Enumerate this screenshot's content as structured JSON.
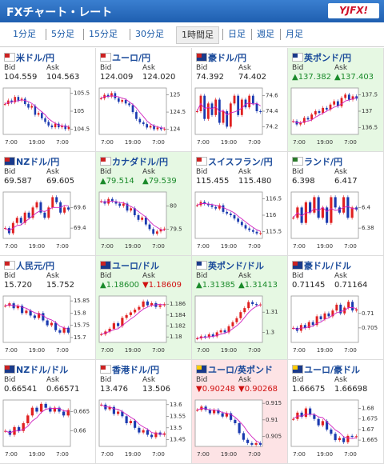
{
  "header": {
    "title": "FXチャート・レート",
    "logo": "YJFX!"
  },
  "tabs": [
    "1分足",
    "5分足",
    "15分足",
    "30分足",
    "1時間足",
    "日足",
    "週足",
    "月足"
  ],
  "selected_tab": 4,
  "labels": {
    "bid": "Bid",
    "ask": "Ask"
  },
  "xticks": [
    "7:00",
    "19:00",
    "7:00"
  ],
  "cards": [
    {
      "pair": "米ドル/円",
      "bid": "104.559",
      "ask": "104.563",
      "state": null,
      "chart": {
        "ylim": [
          104.35,
          105.65
        ],
        "yticks": [
          105.5,
          105,
          104.5
        ],
        "values": [
          105.2,
          105.3,
          105.25,
          105.4,
          105.3,
          105.35,
          105.2,
          105.1,
          105.15,
          104.9,
          104.95,
          104.8,
          104.7,
          104.6,
          104.55,
          104.65,
          104.55,
          104.6,
          104.5,
          104.56
        ]
      }
    },
    {
      "pair": "ユーロ/円",
      "bid": "124.009",
      "ask": "124.020",
      "state": null,
      "chart": {
        "ylim": [
          123.85,
          125.2
        ],
        "yticks": [
          125,
          124.5,
          124
        ],
        "values": [
          124.9,
          125.0,
          124.95,
          125.05,
          124.9,
          124.8,
          124.85,
          124.75,
          124.7,
          124.5,
          124.3,
          124.2,
          124.15,
          124.05,
          124.1,
          124.0,
          124.05,
          124.0,
          124.01
        ]
      }
    },
    {
      "pair": "豪ドル/円",
      "bid": "74.392",
      "ask": "74.402",
      "state": null,
      "chart": {
        "ylim": [
          74.1,
          74.7
        ],
        "yticks": [
          74.6,
          74.4,
          74.2
        ],
        "values": [
          74.4,
          74.6,
          74.3,
          74.5,
          74.35,
          74.55,
          74.25,
          74.4,
          74.2,
          74.5,
          74.6,
          74.35,
          74.55,
          74.45,
          74.6,
          74.5,
          74.4,
          74.39
        ]
      }
    },
    {
      "pair": "英ポンド/円",
      "bid": "▲137.382",
      "ask": "▲137.403",
      "state": "up",
      "chart": {
        "ylim": [
          136.3,
          137.7
        ],
        "yticks": [
          137.5,
          137,
          136.5
        ],
        "values": [
          136.7,
          136.6,
          136.65,
          136.8,
          136.75,
          136.9,
          137.0,
          136.95,
          137.1,
          137.05,
          137.2,
          137.3,
          137.15,
          137.4,
          137.5,
          137.35,
          137.45,
          137.38
        ]
      }
    },
    {
      "pair": "NZドル/円",
      "bid": "69.587",
      "ask": "69.605",
      "state": null,
      "chart": {
        "ylim": [
          69.3,
          69.75
        ],
        "yticks": [
          69.6,
          69.4
        ],
        "values": [
          69.4,
          69.35,
          69.45,
          69.5,
          69.45,
          69.55,
          69.5,
          69.6,
          69.65,
          69.55,
          69.5,
          69.6,
          69.7,
          69.65,
          69.55,
          69.6,
          69.58
        ]
      }
    },
    {
      "pair": "カナダドル/円",
      "bid": "▲79.514",
      "ask": "▲79.539",
      "state": "up",
      "chart": {
        "ylim": [
          79.3,
          80.3
        ],
        "yticks": [
          80,
          79.5
        ],
        "values": [
          80.1,
          80.05,
          80.15,
          80.1,
          80.05,
          80.0,
          80.05,
          79.9,
          79.95,
          79.8,
          79.7,
          79.75,
          79.6,
          79.5,
          79.4,
          79.45,
          79.5,
          79.51
        ]
      }
    },
    {
      "pair": "スイスフラン/円",
      "bid": "115.455",
      "ask": "115.480",
      "state": null,
      "chart": {
        "ylim": [
          115.3,
          116.7
        ],
        "yticks": [
          116.5,
          116,
          115.5
        ],
        "values": [
          116.3,
          116.4,
          116.35,
          116.3,
          116.25,
          116.2,
          116.3,
          116.1,
          116.05,
          116.0,
          115.9,
          115.8,
          115.7,
          115.6,
          115.55,
          115.5,
          115.45,
          115.46
        ]
      }
    },
    {
      "pair": "ランド/円",
      "bid": "6.398",
      "ask": "6.417",
      "state": null,
      "chart": {
        "ylim": [
          6.37,
          6.415
        ],
        "yticks": [
          6.4,
          6.38
        ],
        "values": [
          6.39,
          6.4,
          6.385,
          6.405,
          6.395,
          6.41,
          6.39,
          6.4,
          6.385,
          6.41,
          6.4,
          6.395,
          6.41,
          6.39,
          6.4,
          6.398
        ]
      }
    },
    {
      "pair": "人民元/円",
      "bid": "15.720",
      "ask": "15.752",
      "state": null,
      "chart": {
        "ylim": [
          15.68,
          15.87
        ],
        "yticks": [
          15.85,
          15.8,
          15.75,
          15.7
        ],
        "values": [
          15.83,
          15.84,
          15.82,
          15.83,
          15.8,
          15.81,
          15.79,
          15.78,
          15.8,
          15.77,
          15.75,
          15.76,
          15.73,
          15.72,
          15.74,
          15.72
        ]
      }
    },
    {
      "pair": "ユーロ/ドル",
      "bid": "▲1.18600",
      "ask": "▼1.18609",
      "state": "up",
      "chart": {
        "ylim": [
          1.179,
          1.1875
        ],
        "yticks": [
          1.186,
          1.184,
          1.182,
          1.18
        ],
        "values": [
          1.1805,
          1.181,
          1.1815,
          1.1825,
          1.182,
          1.1835,
          1.184,
          1.1845,
          1.185,
          1.1855,
          1.1865,
          1.1858,
          1.1862,
          1.1855,
          1.1858,
          1.186
        ]
      }
    },
    {
      "pair": "英ポンド/ドル",
      "bid": "▲1.31385",
      "ask": "▲1.31413",
      "state": "up",
      "chart": {
        "ylim": [
          1.295,
          1.318
        ],
        "yticks": [
          1.31,
          1.3
        ],
        "values": [
          1.297,
          1.298,
          1.2975,
          1.299,
          1.298,
          1.3,
          1.301,
          1.3,
          1.303,
          1.305,
          1.307,
          1.31,
          1.312,
          1.315,
          1.314,
          1.3135,
          1.3138
        ]
      }
    },
    {
      "pair": "豪ドル/ドル",
      "bid": "0.71145",
      "ask": "0.71164",
      "state": null,
      "chart": {
        "ylim": [
          0.7,
          0.716
        ],
        "yticks": [
          0.71,
          0.705
        ],
        "values": [
          0.705,
          0.704,
          0.706,
          0.705,
          0.707,
          0.706,
          0.709,
          0.708,
          0.71,
          0.709,
          0.711,
          0.713,
          0.71,
          0.712,
          0.714,
          0.711,
          0.7114
        ]
      }
    },
    {
      "pair": "NZドル/ドル",
      "bid": "0.66541",
      "ask": "0.66571",
      "state": null,
      "chart": {
        "ylim": [
          0.656,
          0.668
        ],
        "yticks": [
          0.665,
          0.66
        ],
        "values": [
          0.66,
          0.659,
          0.661,
          0.66,
          0.662,
          0.664,
          0.666,
          0.665,
          0.667,
          0.666,
          0.665,
          0.666,
          0.665,
          0.664,
          0.6654
        ]
      }
    },
    {
      "pair": "香港ドル/円",
      "bid": "13.476",
      "ask": "13.506",
      "state": null,
      "chart": {
        "ylim": [
          13.42,
          13.62
        ],
        "yticks": [
          13.6,
          13.55,
          13.5,
          13.45
        ],
        "values": [
          13.6,
          13.58,
          13.59,
          13.56,
          13.57,
          13.55,
          13.52,
          13.53,
          13.5,
          13.48,
          13.49,
          13.47,
          13.46,
          13.48,
          13.47,
          13.476
        ]
      }
    },
    {
      "pair": "ユーロ/英ポンド",
      "bid": "▼0.90248",
      "ask": "▼0.90268",
      "state": "down",
      "chart": {
        "ylim": [
          0.902,
          0.916
        ],
        "yticks": [
          0.915,
          0.91,
          0.905
        ],
        "values": [
          0.913,
          0.914,
          0.913,
          0.912,
          0.913,
          0.912,
          0.911,
          0.912,
          0.91,
          0.909,
          0.906,
          0.904,
          0.903,
          0.9025,
          0.903,
          0.9025
        ]
      }
    },
    {
      "pair": "ユーロ/豪ドル",
      "bid": "1.66675",
      "ask": "1.66698",
      "state": null,
      "chart": {
        "ylim": [
          1.662,
          1.684
        ],
        "yticks": [
          1.68,
          1.675,
          1.67,
          1.665
        ],
        "values": [
          1.675,
          1.678,
          1.676,
          1.68,
          1.677,
          1.675,
          1.672,
          1.674,
          1.67,
          1.668,
          1.665,
          1.666,
          1.664,
          1.667,
          1.6665,
          1.6668
        ]
      }
    }
  ]
}
